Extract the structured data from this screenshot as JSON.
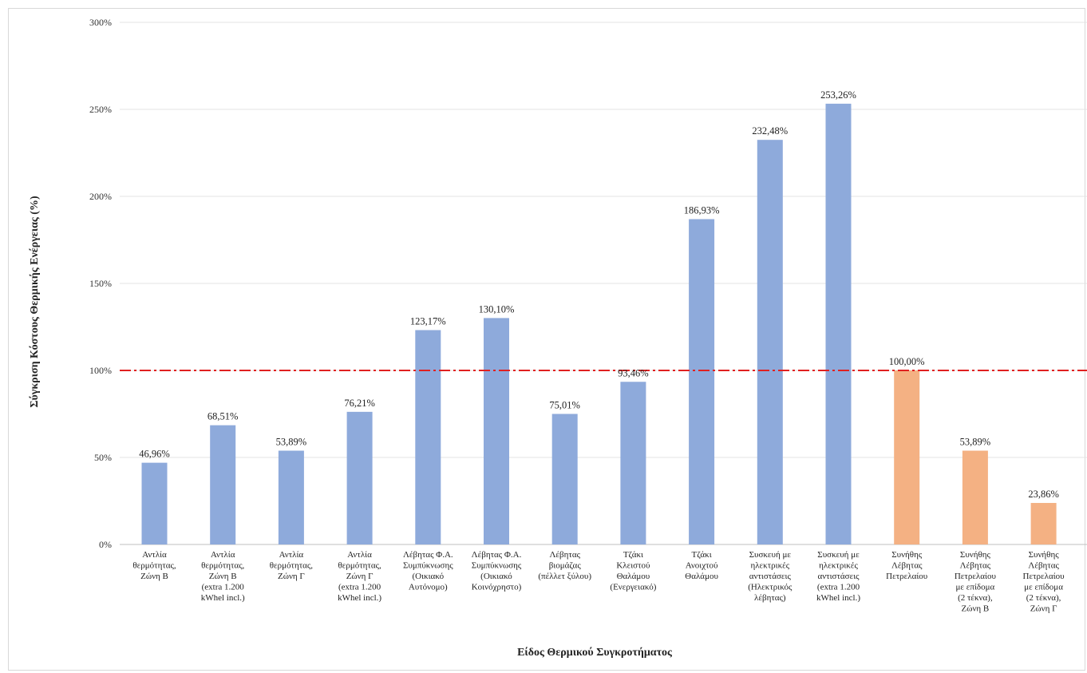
{
  "chart_data": {
    "type": "bar",
    "title": "",
    "xlabel": "Είδος Θερμικού Συγκροτήματος",
    "ylabel": "Σύγκριση Κόστους Θερμικής Ενέργειας (%)",
    "ylim": [
      0,
      300
    ],
    "yticks": [
      0,
      50,
      100,
      150,
      200,
      250,
      300
    ],
    "ytick_labels": [
      "0%",
      "50%",
      "100%",
      "150%",
      "200%",
      "250%",
      "300%"
    ],
    "grid": "horizontal",
    "reference_line": {
      "value": 100,
      "style": "dash-dot",
      "color": "#e02020"
    },
    "categories": [
      [
        "Αντλία",
        "θερμότητας,",
        "Ζώνη Β"
      ],
      [
        "Αντλία",
        "θερμότητας,",
        "Ζώνη Β",
        "(extra 1.200",
        "kWhel incl.)"
      ],
      [
        "Αντλία",
        "θερμότητας,",
        "Ζώνη Γ"
      ],
      [
        "Αντλία",
        "θερμότητας,",
        "Ζώνη Γ",
        "(extra 1.200",
        "kWhel incl.)"
      ],
      [
        "Λέβητας Φ.Α.",
        "Συμπύκνωσης",
        "(Οικιακό",
        "Αυτόνομο)"
      ],
      [
        "Λέβητας Φ.Α.",
        "Συμπύκνωσης",
        "(Οικιακό",
        "Κοινόχρηστο)"
      ],
      [
        "Λέβητας",
        "βιομάζας",
        "(πέλλετ ξύλου)"
      ],
      [
        "Τζάκι",
        "Κλειστού",
        "Θαλάμου",
        "(Ενεργειακό)"
      ],
      [
        "Τζάκι",
        "Ανοιχτού",
        "Θαλάμου"
      ],
      [
        "Συσκευή με",
        "ηλεκτρικές",
        "αντιστάσεις",
        "(Ηλεκτρικός",
        "λέβητας)"
      ],
      [
        "Συσκευή με",
        "ηλεκτρικές",
        "αντιστάσεις",
        "(extra 1.200",
        "kWhel incl.)"
      ],
      [
        "Συνήθης",
        "Λέβητας",
        "Πετρελαίου"
      ],
      [
        "Συνήθης",
        "Λέβητας",
        "Πετρελαίου",
        "με επίδομα",
        "(2 τέκνα),",
        "Ζώνη Β"
      ],
      [
        "Συνήθης",
        "Λέβητας",
        "Πετρελαίου",
        "με επίδομα",
        "(2 τέκνα),",
        "Ζώνη Γ"
      ]
    ],
    "values": [
      46.96,
      68.51,
      53.89,
      76.21,
      123.17,
      130.1,
      75.01,
      93.46,
      186.93,
      232.48,
      253.26,
      100.0,
      53.89,
      23.86
    ],
    "data_labels": [
      "46,96%",
      "68,51%",
      "53,89%",
      "76,21%",
      "123,17%",
      "130,10%",
      "75,01%",
      "93,46%",
      "186,93%",
      "232,48%",
      "253,26%",
      "100,00%",
      "53,89%",
      "23,86%"
    ],
    "bar_colors": [
      "#8eaadb",
      "#8eaadb",
      "#8eaadb",
      "#8eaadb",
      "#8eaadb",
      "#8eaadb",
      "#8eaadb",
      "#8eaadb",
      "#8eaadb",
      "#8eaadb",
      "#8eaadb",
      "#f4b183",
      "#f4b183",
      "#f4b183"
    ]
  }
}
